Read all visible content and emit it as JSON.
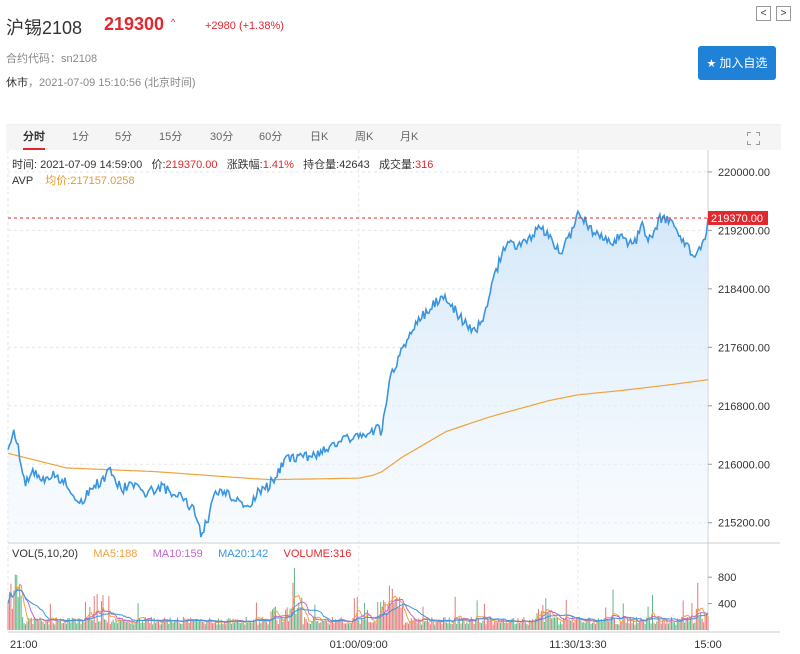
{
  "header": {
    "name": "沪锡2108",
    "price": "219300",
    "arrow": "^",
    "change": "+2980 (+1.38%)",
    "code_label": "合约代码：",
    "code": "sn2108",
    "status": "休市",
    "sep": "，",
    "datetime": "2021-07-09 15:10:56 (北京时间)",
    "prev_label": "<",
    "next_label": ">",
    "add_label": "加入自选"
  },
  "tabs": [
    "分时",
    "1分",
    "5分",
    "15分",
    "30分",
    "60分",
    "日K",
    "周K",
    "月K"
  ],
  "info": {
    "time_label": "时间:",
    "time": "2021-07-09 14:59:00",
    "price_label": "价:",
    "price": "219370.00",
    "chg_label": "涨跌幅:",
    "chg": "1.41%",
    "oi_label": "持仓量:",
    "oi": "42643",
    "vol_label": "成交量:",
    "vol": "316",
    "avp_label": "AVP",
    "avg_label": "均价:",
    "avg": "217157.0258"
  },
  "vol_info": {
    "label": "VOL(5,10,20)",
    "ma5": "MA5:188",
    "ma10": "MA10:159",
    "ma20": "MA20:142",
    "volume": "VOLUME:316"
  },
  "colors": {
    "price_line": "#3a95e0",
    "avg_line": "#f0a23c",
    "up": "#e0282e",
    "ma5": "#f0a23c",
    "ma10": "#c167c9",
    "ma20": "#3a95e0",
    "buy_button": "#1f82d6"
  },
  "chart_data": {
    "type": "line",
    "price_axis_ticks": [
      "220000.00",
      "219200.00",
      "218400.00",
      "217600.00",
      "216800.00",
      "216000.00",
      "215200.00"
    ],
    "price_ylim": [
      214950,
      220300
    ],
    "last_price_label": "219370.00",
    "last_price": 219370,
    "volume_axis_ticks": [
      "800",
      "400"
    ],
    "volume_ylim": [
      0,
      1000
    ],
    "time_ticks": [
      "21:00",
      "01:00/09:00",
      "11:30/13:30",
      "15:00"
    ],
    "time_tick_index": [
      0,
      240,
      390,
      479
    ],
    "n_points": 480,
    "price_keypoints": [
      [
        0,
        216200
      ],
      [
        4,
        216500
      ],
      [
        12,
        215750
      ],
      [
        18,
        215900
      ],
      [
        25,
        215800
      ],
      [
        32,
        215850
      ],
      [
        40,
        215750
      ],
      [
        48,
        215450
      ],
      [
        55,
        215600
      ],
      [
        62,
        215750
      ],
      [
        70,
        215900
      ],
      [
        78,
        215650
      ],
      [
        85,
        215750
      ],
      [
        95,
        215600
      ],
      [
        105,
        215700
      ],
      [
        112,
        215600
      ],
      [
        120,
        215550
      ],
      [
        128,
        215350
      ],
      [
        132,
        215050
      ],
      [
        136,
        215200
      ],
      [
        142,
        215650
      ],
      [
        150,
        215600
      ],
      [
        158,
        215500
      ],
      [
        163,
        215400
      ],
      [
        170,
        215600
      ],
      [
        178,
        215700
      ],
      [
        182,
        215800
      ],
      [
        190,
        216050
      ],
      [
        200,
        216100
      ],
      [
        210,
        216100
      ],
      [
        218,
        216200
      ],
      [
        225,
        216300
      ],
      [
        234,
        216350
      ],
      [
        240,
        216400
      ],
      [
        246,
        216400
      ],
      [
        252,
        216500
      ],
      [
        256,
        216450
      ],
      [
        258,
        216750
      ],
      [
        262,
        217200
      ],
      [
        268,
        217500
      ],
      [
        275,
        217800
      ],
      [
        282,
        218000
      ],
      [
        290,
        218150
      ],
      [
        296,
        218300
      ],
      [
        300,
        218250
      ],
      [
        306,
        218100
      ],
      [
        312,
        217950
      ],
      [
        318,
        217800
      ],
      [
        322,
        217900
      ],
      [
        326,
        218000
      ],
      [
        332,
        218500
      ],
      [
        338,
        218900
      ],
      [
        342,
        219000
      ],
      [
        350,
        219000
      ],
      [
        358,
        219100
      ],
      [
        364,
        219250
      ],
      [
        370,
        219100
      ],
      [
        378,
        218900
      ],
      [
        384,
        219100
      ],
      [
        390,
        219450
      ],
      [
        396,
        219300
      ],
      [
        404,
        219100
      ],
      [
        412,
        219050
      ],
      [
        420,
        219100
      ],
      [
        428,
        219000
      ],
      [
        434,
        219250
      ],
      [
        440,
        219050
      ],
      [
        446,
        219350
      ],
      [
        452,
        219350
      ],
      [
        458,
        219200
      ],
      [
        464,
        219000
      ],
      [
        470,
        218850
      ],
      [
        474,
        218950
      ],
      [
        478,
        219200
      ],
      [
        479,
        219370
      ]
    ],
    "avg_keypoints": [
      [
        0,
        216150
      ],
      [
        40,
        215950
      ],
      [
        100,
        215900
      ],
      [
        170,
        215800
      ],
      [
        180,
        215790
      ],
      [
        240,
        215810
      ],
      [
        250,
        215850
      ],
      [
        256,
        215900
      ],
      [
        270,
        216100
      ],
      [
        300,
        216450
      ],
      [
        330,
        216650
      ],
      [
        370,
        216870
      ],
      [
        390,
        216950
      ],
      [
        420,
        217010
      ],
      [
        450,
        217080
      ],
      [
        479,
        217157
      ]
    ]
  }
}
